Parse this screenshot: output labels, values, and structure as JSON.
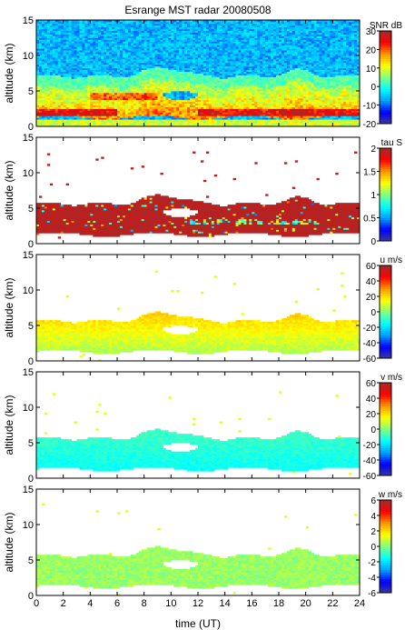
{
  "figure": {
    "title": "Esrange MST radar 20080508",
    "xlabel": "time (UT)"
  },
  "chart_data": [
    {
      "type": "heatmap",
      "ylabel": "altitude (km)",
      "colorbar_label": "SNR dB",
      "xlim": [
        0,
        24
      ],
      "ylim": [
        0,
        15
      ],
      "clim": [
        -20,
        30
      ],
      "colorbar_ticks": [
        "30",
        "20",
        "10",
        "0",
        "-10",
        "-20"
      ],
      "colorbar_tick_values": [
        30,
        20,
        10,
        0,
        -10,
        -20
      ],
      "yticks": [
        "0",
        "5",
        "10",
        "15"
      ],
      "ytick_values": [
        0,
        5,
        10,
        15
      ],
      "pattern": "snr"
    },
    {
      "type": "heatmap",
      "ylabel": "altitude (km)",
      "colorbar_label": "tau S",
      "xlim": [
        0,
        24
      ],
      "ylim": [
        0,
        15
      ],
      "clim": [
        0,
        2
      ],
      "colorbar_ticks": [
        "2",
        "1.5",
        "1",
        "0.5",
        "0"
      ],
      "colorbar_tick_values": [
        2,
        1.5,
        1,
        0.5,
        0
      ],
      "yticks": [
        "0",
        "5",
        "10",
        "15"
      ],
      "ytick_values": [
        0,
        5,
        10,
        15
      ],
      "pattern": "tau"
    },
    {
      "type": "heatmap",
      "ylabel": "altitude (km)",
      "colorbar_label": "u m/s",
      "xlim": [
        0,
        24
      ],
      "ylim": [
        0,
        15
      ],
      "clim": [
        -60,
        60
      ],
      "colorbar_ticks": [
        "60",
        "40",
        "20",
        "0",
        "-20",
        "-40",
        "-60"
      ],
      "colorbar_tick_values": [
        60,
        40,
        20,
        0,
        -20,
        -40,
        -60
      ],
      "yticks": [
        "0",
        "5",
        "10",
        "15"
      ],
      "ytick_values": [
        0,
        5,
        10,
        15
      ],
      "pattern": "u"
    },
    {
      "type": "heatmap",
      "ylabel": "altitude (km)",
      "colorbar_label": "v m/s",
      "xlim": [
        0,
        24
      ],
      "ylim": [
        0,
        15
      ],
      "clim": [
        -60,
        60
      ],
      "colorbar_ticks": [
        "60",
        "40",
        "20",
        "0",
        "-20",
        "-40",
        "-60"
      ],
      "colorbar_tick_values": [
        60,
        40,
        20,
        0,
        -20,
        -40,
        -60
      ],
      "yticks": [
        "0",
        "5",
        "10",
        "15"
      ],
      "ytick_values": [
        0,
        5,
        10,
        15
      ],
      "pattern": "v"
    },
    {
      "type": "heatmap",
      "ylabel": "altitude (km)",
      "colorbar_label": "w m/s",
      "xlim": [
        0,
        24
      ],
      "ylim": [
        0,
        15
      ],
      "clim": [
        -6,
        6
      ],
      "colorbar_ticks": [
        "6",
        "4",
        "2",
        "0",
        "-2",
        "-4",
        "-6"
      ],
      "colorbar_tick_values": [
        6,
        4,
        2,
        0,
        -2,
        -4,
        -6
      ],
      "yticks": [
        "0",
        "5",
        "10",
        "15"
      ],
      "ytick_values": [
        0,
        5,
        10,
        15
      ],
      "pattern": "w"
    }
  ],
  "xticks": [
    "0",
    "2",
    "4",
    "6",
    "8",
    "10",
    "12",
    "14",
    "16",
    "18",
    "20",
    "22",
    "24"
  ],
  "xtick_values": [
    0,
    2,
    4,
    6,
    8,
    10,
    12,
    14,
    16,
    18,
    20,
    22,
    24
  ],
  "colormap": [
    "#3a3a9e",
    "#0000ff",
    "#00a0ff",
    "#00ffff",
    "#80ff80",
    "#ffff00",
    "#ff9900",
    "#ff0000",
    "#a52a2a"
  ]
}
